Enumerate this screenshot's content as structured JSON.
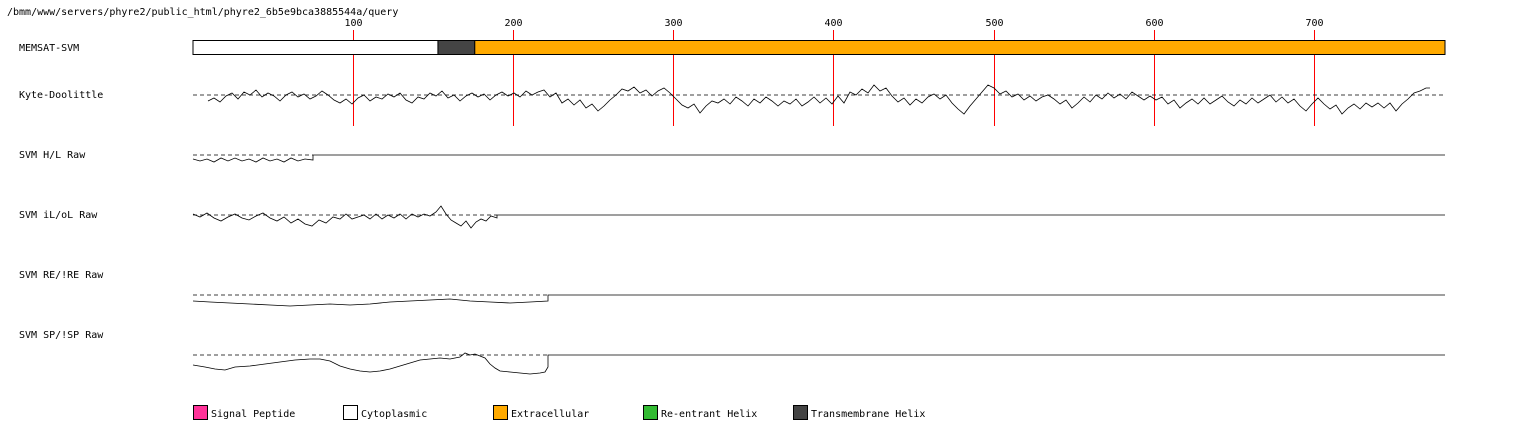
{
  "header": {
    "path": "/bmm/www/servers/phyre2/public_html/phyre2_6b5e9bca3885544a/query"
  },
  "axis": {
    "ticks": [
      100,
      200,
      300,
      400,
      500,
      600,
      700
    ],
    "seq_length": 782
  },
  "tracks": {
    "memsat_label": "MEMSAT-SVM",
    "kd_label": "Kyte-Doolittle",
    "hl_label": "SVM H/L Raw",
    "iloL_label": "SVM iL/oL Raw",
    "re_label": "SVM RE/!RE Raw",
    "sp_label": "SVM SP/!SP Raw"
  },
  "topology": [
    {
      "type": "cytoplasmic",
      "start": 1,
      "end": 153
    },
    {
      "type": "transmembrane",
      "start": 154,
      "end": 176
    },
    {
      "type": "extracellular",
      "start": 177,
      "end": 782
    }
  ],
  "legend": [
    {
      "key": "signal",
      "label": "Signal Peptide",
      "color": "#ff3399"
    },
    {
      "key": "cyto",
      "label": "Cytoplasmic",
      "color": "#ffffff"
    },
    {
      "key": "extra",
      "label": "Extracellular",
      "color": "#ffaa00"
    },
    {
      "key": "reentrant",
      "label": "Re-entrant Helix",
      "color": "#33bb33"
    },
    {
      "key": "tm",
      "label": "Transmembrane Helix",
      "color": "#444444"
    }
  ],
  "colors": {
    "tick": "#ff0000",
    "cyto": "#ffffff",
    "extra": "#ffaa00",
    "tm": "#444444"
  }
}
